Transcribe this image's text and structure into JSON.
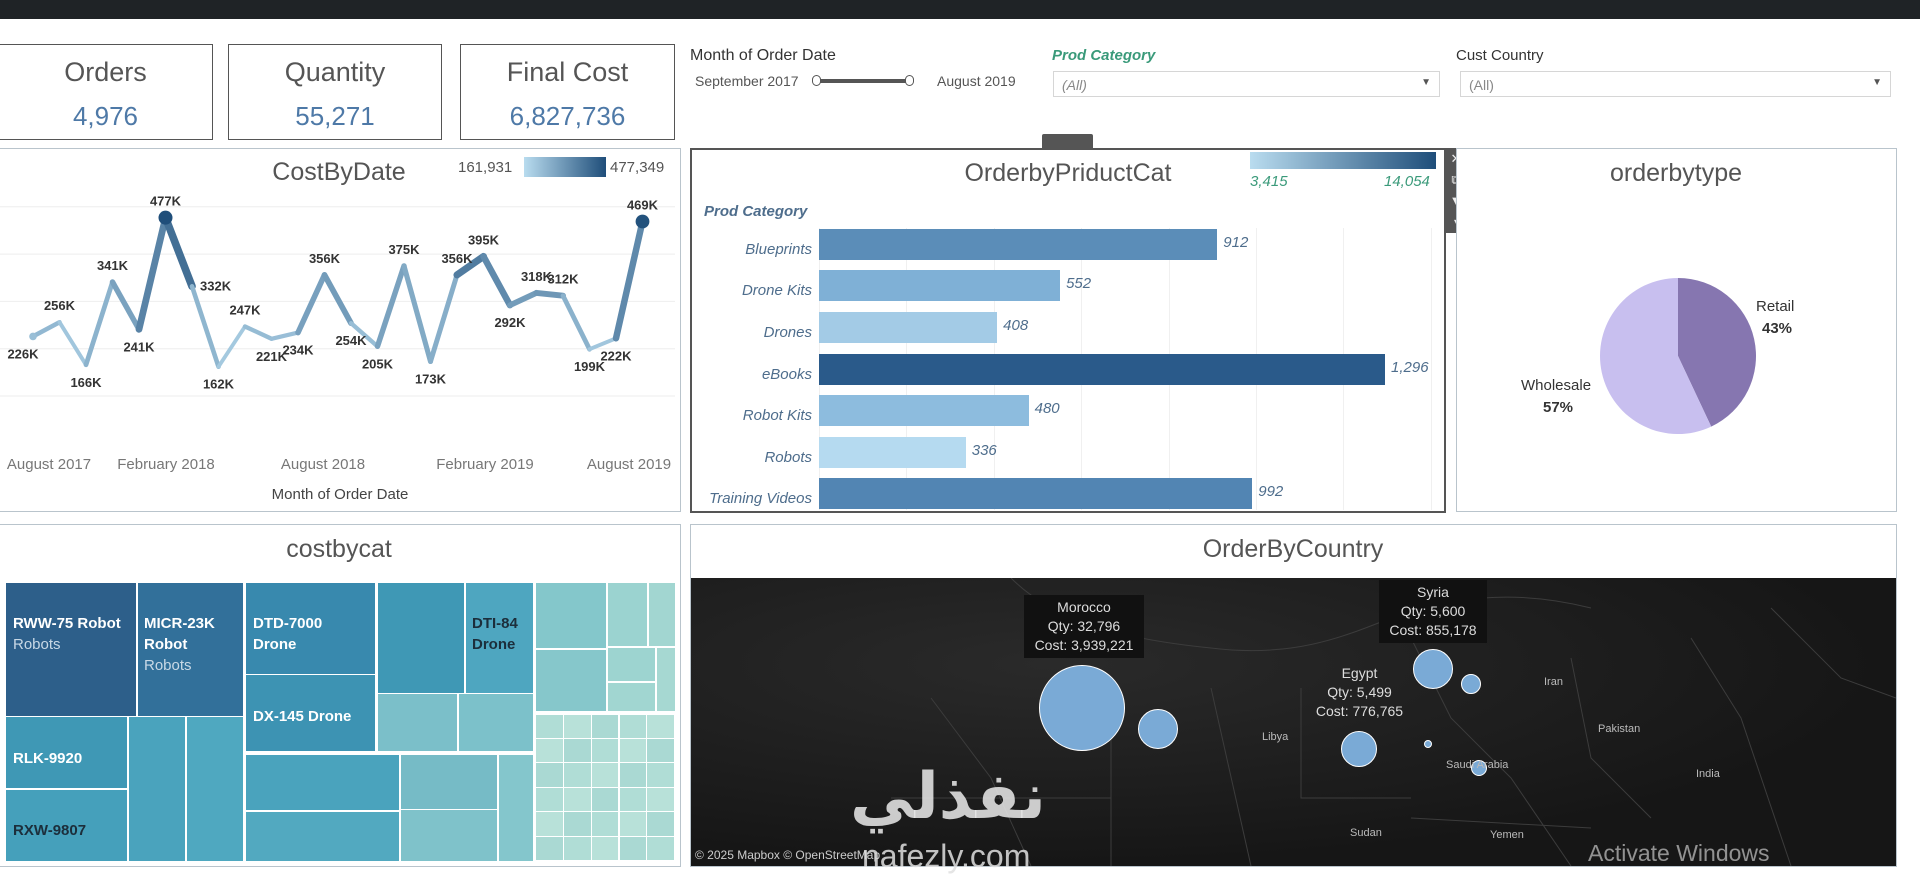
{
  "kpis": [
    {
      "label": "Orders",
      "value": "4,976"
    },
    {
      "label": "Quantity",
      "value": "55,271"
    },
    {
      "label": "Final Cost",
      "value": "6,827,736"
    }
  ],
  "filters": {
    "date": {
      "label": "Month of Order Date",
      "start": "September 2017",
      "end": "August 2019"
    },
    "prod_category": {
      "label": "Prod Category",
      "value": "(All)"
    },
    "cust_country": {
      "label": "Cust Country",
      "value": "(All)"
    }
  },
  "chart_data": [
    {
      "type": "line",
      "title": "CostByDate",
      "xlabel": "Month of Order Date",
      "ylabel": "",
      "x": [
        "Sep 2017",
        "Oct 2017",
        "Nov 2017",
        "Dec 2017",
        "Jan 2018",
        "Feb 2018",
        "Mar 2018",
        "Apr 2018",
        "May 2018",
        "Jun 2018",
        "Jul 2018",
        "Aug 2018",
        "Sep 2018",
        "Oct 2018",
        "Nov 2018",
        "Dec 2018",
        "Jan 2019",
        "Feb 2019",
        "Mar 2019",
        "Apr 2019",
        "May 2019",
        "Jun 2019",
        "Jul 2019",
        "Aug 2019"
      ],
      "values": [
        226000,
        256000,
        166000,
        341000,
        241000,
        477000,
        332000,
        162000,
        247000,
        221000,
        234000,
        356000,
        254000,
        205000,
        375000,
        173000,
        356000,
        395000,
        292000,
        318000,
        312000,
        199000,
        222000,
        469000
      ],
      "data_labels": [
        "226K",
        "256K",
        "166K",
        "341K",
        "241K",
        "477K",
        "332K",
        "162K",
        "247K",
        "221K",
        "234K",
        "356K",
        "254K",
        "205K",
        "375K",
        "173K",
        "356K",
        "395K",
        "292K",
        "318K",
        "312K",
        "199K",
        "222K",
        "469K"
      ],
      "x_ticks": [
        "August 2017",
        "February 2018",
        "August 2018",
        "February 2019",
        "August 2019"
      ],
      "color_legend": {
        "min": "161,931",
        "max": "477,349",
        "min_color": "#b9dcef",
        "max_color": "#1f4e7a"
      },
      "ylim": [
        0,
        550000
      ],
      "grid": true
    },
    {
      "type": "bar",
      "title": "OrderbyPriductCat",
      "ylabel": "Prod Category",
      "categories": [
        "Blueprints",
        "Drone Kits",
        "Drones",
        "eBooks",
        "Robot Kits",
        "Robots",
        "Training Videos"
      ],
      "values": [
        912,
        552,
        408,
        1296,
        480,
        336,
        992
      ],
      "data_labels": [
        "912",
        "552",
        "408",
        "1,296",
        "480",
        "336",
        "992"
      ],
      "colors": [
        "#5b8db8",
        "#7fb0d6",
        "#a3cbe6",
        "#2a5a8a",
        "#8dbcde",
        "#b5daf0",
        "#5285b3"
      ],
      "color_legend": {
        "min": "3,415",
        "max": "14,054",
        "min_color": "#b9dcef",
        "max_color": "#1f4e7a"
      }
    },
    {
      "type": "pie",
      "title": "orderbytype",
      "slices": [
        {
          "label": "Retail",
          "value": 43,
          "pct": "43%",
          "color": "#8676b0"
        },
        {
          "label": "Wholesale",
          "value": 57,
          "pct": "57%",
          "color": "#c8bfef"
        }
      ]
    },
    {
      "type": "treemap",
      "title": "costbycat",
      "labels": [
        {
          "name": "RWW-75 Robot",
          "sub": "Robots"
        },
        {
          "name": "MICR-23K Robot",
          "sub": "Robots"
        },
        {
          "name": "RLK-9920"
        },
        {
          "name": "RXW-9807"
        },
        {
          "name": "DTD-7000 Drone"
        },
        {
          "name": "DX-145 Drone"
        },
        {
          "name": "DTI-84 Drone"
        }
      ]
    }
  ],
  "map": {
    "title": "OrderByCountry",
    "tooltips": [
      {
        "country": "Morocco",
        "qty": "Qty: 32,796",
        "cost": "Cost: 3,939,221"
      },
      {
        "country": "Egypt",
        "qty": "Qty: 5,499",
        "cost": "Cost: 776,765"
      },
      {
        "country": "Syria",
        "qty": "Qty: 5,600",
        "cost": "Cost: 855,178"
      }
    ],
    "place_labels": [
      "Libya",
      "Iran",
      "Pakistan",
      "India",
      "Saudi Arabia",
      "Sudan",
      "Yemen"
    ],
    "credit": "© 2025 Mapbox © OpenStreetMap",
    "bubble_color": "#7aaad6"
  },
  "overlay": {
    "activate": "Activate Windows",
    "watermark_ar": "نفذلي",
    "watermark_url": "nafezly.com"
  }
}
